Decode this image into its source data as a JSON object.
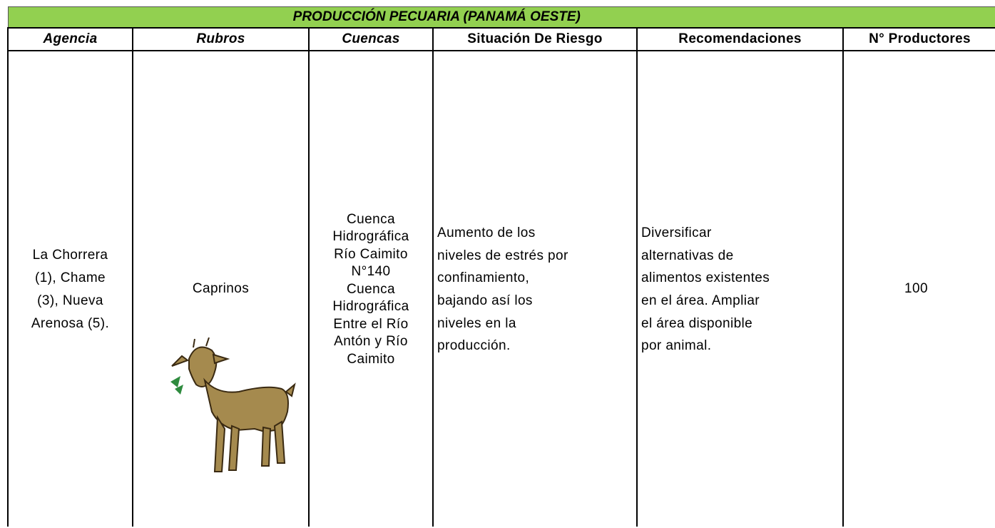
{
  "header": {
    "title": "PRODUCCIÓN  PECUARIA (PANAMÁ OESTE)"
  },
  "table": {
    "columns": [
      "Agencia",
      "Rubros",
      "Cuencas",
      "Situación De Riesgo",
      "Recomendaciones",
      "N° Productores"
    ],
    "rows": [
      [
        [
          "La Chorrera",
          "(1), Chame",
          "(3), Nueva",
          "Arenosa (5)."
        ],
        [
          "Caprinos"
        ],
        [
          "Cuenca",
          "Hidrográfica",
          "Río Caimito",
          "N°140",
          "Cuenca",
          "Hidrográfica",
          "Entre el Río",
          "Antón y Río",
          "Caimito"
        ],
        [
          "Aumento de los",
          "niveles de estrés por",
          "confinamiento,",
          "bajando así los",
          "niveles en la",
          "producción."
        ],
        [
          "Diversificar",
          "alternativas de",
          "alimentos existentes",
          "en el área. Ampliar",
          "el área disponible",
          "por  animal."
        ],
        [
          "100"
        ]
      ]
    ]
  }
}
